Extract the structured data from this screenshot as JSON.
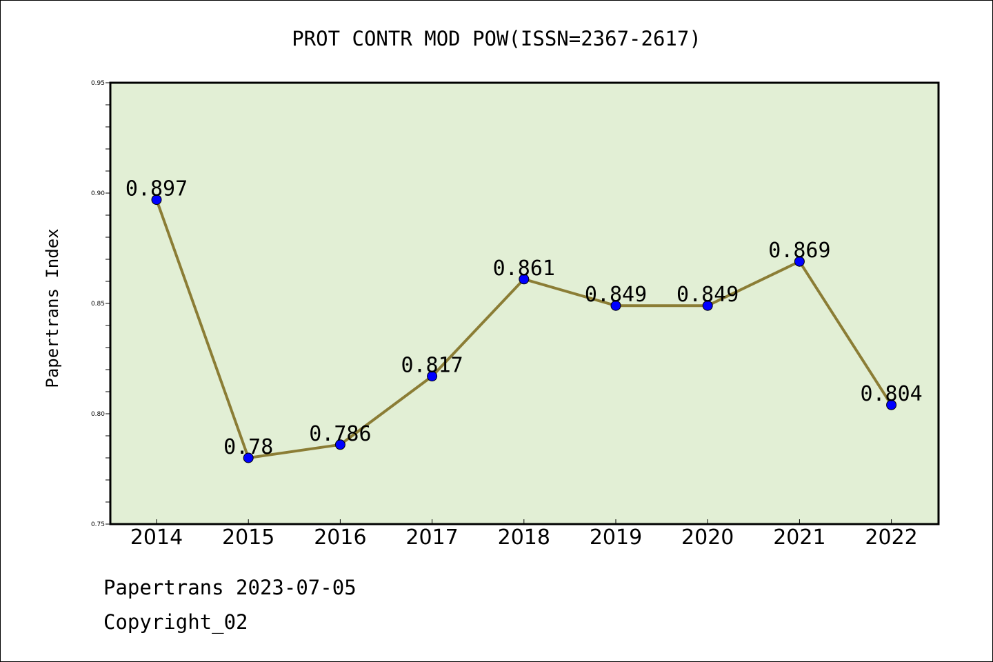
{
  "chart_data": {
    "type": "line",
    "title": "PROT CONTR MOD POW(ISSN=2367-2617)",
    "xlabel": "",
    "ylabel": "Papertrans Index",
    "categories": [
      "2014",
      "2015",
      "2016",
      "2017",
      "2018",
      "2019",
      "2020",
      "2021",
      "2022"
    ],
    "series": [
      {
        "values": [
          0.897,
          0.78,
          0.786,
          0.817,
          0.861,
          0.849,
          0.849,
          0.869,
          0.804
        ]
      }
    ],
    "data_labels": [
      "0.897",
      "0.78",
      "0.786",
      "0.817",
      "0.861",
      "0.849",
      "0.849",
      "0.869",
      "0.804"
    ],
    "ylim": [
      0.75,
      0.95
    ],
    "yticks": [
      0.75,
      0.8,
      0.85,
      0.9,
      0.95
    ],
    "ytick_labels": [
      "0.75",
      "0.80",
      "0.85",
      "0.90",
      "0.95"
    ],
    "grid": false,
    "legend": "none",
    "colors": {
      "plot_background": "#e2efd5",
      "line": "#8b7d35",
      "marker": "#0000ff"
    }
  },
  "footer": {
    "date_line": "Papertrans 2023-07-05",
    "copyright": "Copyright_02"
  }
}
